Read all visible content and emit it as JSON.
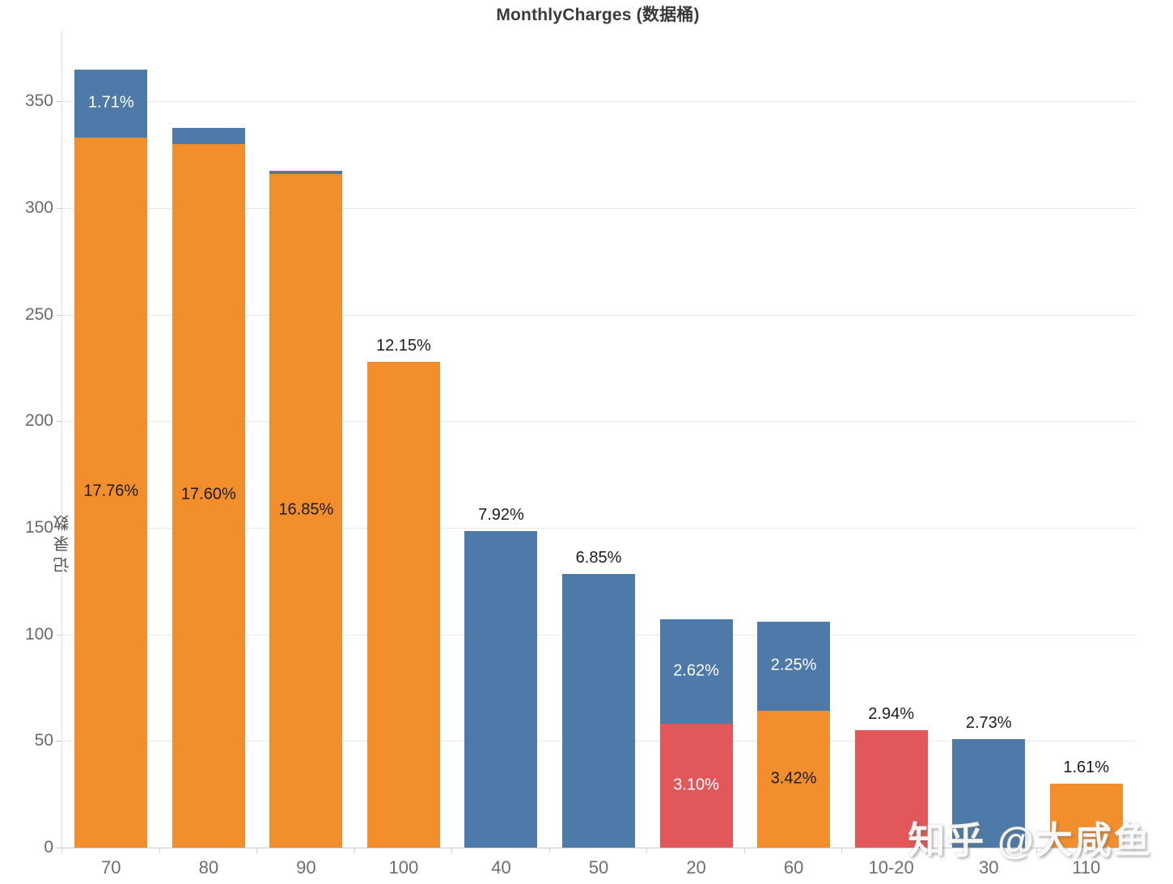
{
  "title": "MonthlyCharges (数据桶)",
  "watermark": "知乎 @大咸鱼",
  "colors": {
    "blue": "#4d7aa8",
    "orange": "#f28e2c",
    "red": "#e25759",
    "gridline": "#e8e8e8",
    "axis_line": "#c9c9c9",
    "tick_text": "#696969",
    "title_text": "#3a3a3a"
  },
  "y_axis": {
    "label": "记录数",
    "ticks": [
      0,
      50,
      100,
      150,
      200,
      250,
      300,
      350
    ],
    "max_plot_value": 383.1
  },
  "chart_data": {
    "type": "bar",
    "stacked": true,
    "title": "MonthlyCharges (数据桶)",
    "xlabel": "",
    "ylabel": "记录数",
    "ylim": [
      0,
      383.1
    ],
    "grid": true,
    "categories": [
      "70",
      "80",
      "90",
      "100",
      "40",
      "50",
      "20",
      "60",
      "10-20",
      "30",
      "110"
    ],
    "bars": [
      {
        "category": "70",
        "segments": [
          {
            "color": "orange",
            "value": 333,
            "pct_label": "17.76%",
            "label_color": "black"
          },
          {
            "color": "blue",
            "value": 32,
            "pct_label": "1.71%",
            "label_color": "white"
          }
        ]
      },
      {
        "category": "80",
        "segments": [
          {
            "color": "orange",
            "value": 330,
            "pct_label": "17.60%",
            "label_color": "black"
          },
          {
            "color": "blue",
            "value": 7.5
          }
        ]
      },
      {
        "category": "90",
        "segments": [
          {
            "color": "orange",
            "value": 316,
            "pct_label": "16.85%",
            "label_color": "black"
          },
          {
            "color": "blue",
            "value": 1.6
          }
        ]
      },
      {
        "category": "100",
        "segments": [
          {
            "color": "orange",
            "value": 228
          }
        ],
        "label_above": "12.15%"
      },
      {
        "category": "40",
        "segments": [
          {
            "color": "blue",
            "value": 148.5
          }
        ],
        "label_above": "7.92%"
      },
      {
        "category": "50",
        "segments": [
          {
            "color": "blue",
            "value": 128.5
          }
        ],
        "label_above": "6.85%"
      },
      {
        "category": "20",
        "segments": [
          {
            "color": "red",
            "value": 58,
            "pct_label": "3.10%",
            "label_color": "white"
          },
          {
            "color": "blue",
            "value": 49,
            "pct_label": "2.62%",
            "label_color": "white"
          }
        ]
      },
      {
        "category": "60",
        "segments": [
          {
            "color": "orange",
            "value": 64,
            "pct_label": "3.42%",
            "label_color": "black"
          },
          {
            "color": "blue",
            "value": 42,
            "pct_label": "2.25%",
            "label_color": "white"
          }
        ]
      },
      {
        "category": "10-20",
        "segments": [
          {
            "color": "red",
            "value": 55
          }
        ],
        "label_above": "2.94%"
      },
      {
        "category": "30",
        "segments": [
          {
            "color": "blue",
            "value": 51
          }
        ],
        "label_above": "2.73%"
      },
      {
        "category": "110",
        "segments": [
          {
            "color": "orange",
            "value": 30
          }
        ],
        "label_above": "1.61%"
      }
    ]
  }
}
